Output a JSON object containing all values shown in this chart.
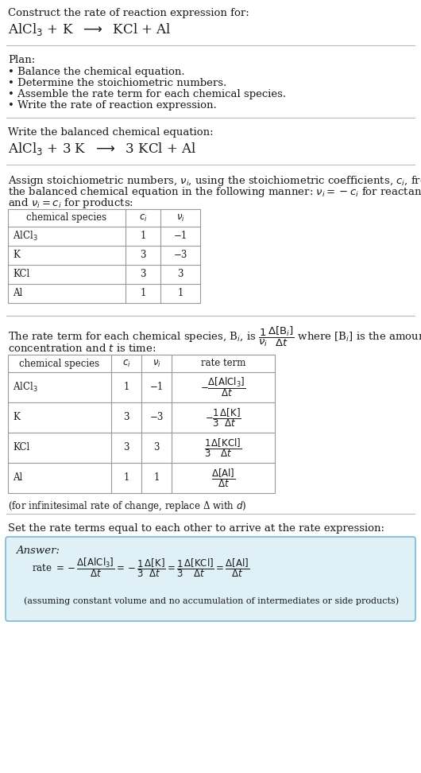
{
  "bg_color": "#ffffff",
  "text_color": "#1a1a1a",
  "title_line1": "Construct the rate of reaction expression for:",
  "plan_header": "Plan:",
  "plan_items": [
    "• Balance the chemical equation.",
    "• Determine the stoichiometric numbers.",
    "• Assemble the rate term for each chemical species.",
    "• Write the rate of reaction expression."
  ],
  "balanced_header": "Write the balanced chemical equation:",
  "assign_text1": "Assign stoichiometric numbers, $\\nu_i$, using the stoichiometric coefficients, $c_i$, from",
  "assign_text2": "the balanced chemical equation in the following manner: $\\nu_i = -c_i$ for reactants",
  "assign_text3": "and $\\nu_i = c_i$ for products:",
  "table1_headers": [
    "chemical species",
    "$c_i$",
    "$\\nu_i$"
  ],
  "table1_rows": [
    [
      "AlCl$_3$",
      "1",
      "−1"
    ],
    [
      "K",
      "3",
      "−3"
    ],
    [
      "KCl",
      "3",
      "3"
    ],
    [
      "Al",
      "1",
      "1"
    ]
  ],
  "rate_text2": "concentration and $t$ is time:",
  "table2_headers": [
    "chemical species",
    "$c_i$",
    "$\\nu_i$",
    "rate term"
  ],
  "table2_rows": [
    [
      "AlCl$_3$",
      "1",
      "−1",
      "$-\\dfrac{\\Delta[\\mathrm{AlCl_3}]}{\\Delta t}$"
    ],
    [
      "K",
      "3",
      "−3",
      "$-\\dfrac{1}{3}\\dfrac{\\Delta[\\mathrm{K}]}{\\Delta t}$"
    ],
    [
      "KCl",
      "3",
      "3",
      "$\\dfrac{1}{3}\\dfrac{\\Delta[\\mathrm{KCl}]}{\\Delta t}$"
    ],
    [
      "Al",
      "1",
      "1",
      "$\\dfrac{\\Delta[\\mathrm{Al}]}{\\Delta t}$"
    ]
  ],
  "infinitesimal_note": "(for infinitesimal rate of change, replace Δ with $d$)",
  "set_rate_text": "Set the rate terms equal to each other to arrive at the rate expression:",
  "answer_label": "Answer:",
  "answer_box_color": "#dff0f7",
  "answer_box_border": "#7ab8d4",
  "assuming_note": "(assuming constant volume and no accumulation of intermediates or side products)"
}
